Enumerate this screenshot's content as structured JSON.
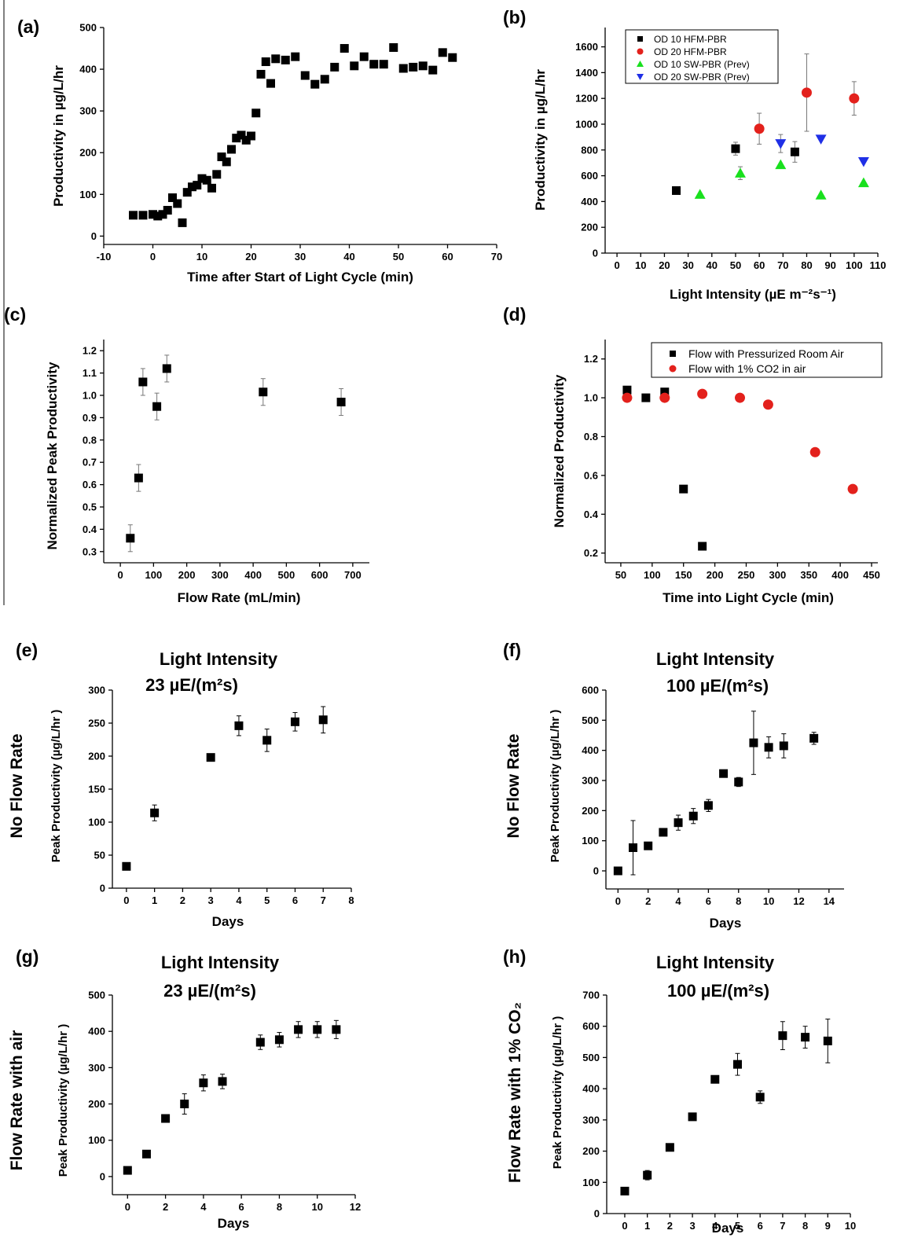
{
  "chart_data": [
    {
      "id": "a",
      "panel_label": "(a)",
      "type": "scatter",
      "xlabel": "Time after Start of Light Cycle (min)",
      "ylabel": "Productivity in µg/L/hr",
      "xlim": [
        -10,
        70
      ],
      "ylim": [
        -20,
        500
      ],
      "xticks": [
        -10,
        0,
        10,
        20,
        30,
        40,
        50,
        60,
        70
      ],
      "yticks": [
        0,
        100,
        200,
        300,
        400,
        500
      ],
      "series": [
        {
          "marker": "square",
          "color": "#000000",
          "points": [
            [
              -4,
              50
            ],
            [
              -2,
              50
            ],
            [
              0,
              52
            ],
            [
              1,
              48
            ],
            [
              2,
              52
            ],
            [
              3,
              62
            ],
            [
              4,
              92
            ],
            [
              5,
              78
            ],
            [
              6,
              32
            ],
            [
              7,
              105
            ],
            [
              8,
              118
            ],
            [
              9,
              122
            ],
            [
              10,
              138
            ],
            [
              11,
              134
            ],
            [
              12,
              115
            ],
            [
              13,
              148
            ],
            [
              14,
              190
            ],
            [
              15,
              178
            ],
            [
              16,
              208
            ],
            [
              17,
              235
            ],
            [
              18,
              242
            ],
            [
              19,
              230
            ],
            [
              20,
              240
            ],
            [
              21,
              295
            ],
            [
              22,
              388
            ],
            [
              23,
              418
            ],
            [
              24,
              366
            ],
            [
              25,
              425
            ],
            [
              27,
              422
            ],
            [
              29,
              430
            ],
            [
              31,
              385
            ],
            [
              33,
              364
            ],
            [
              35,
              376
            ],
            [
              37,
              405
            ],
            [
              39,
              450
            ],
            [
              41,
              408
            ],
            [
              43,
              430
            ],
            [
              45,
              412
            ],
            [
              47,
              412
            ],
            [
              49,
              452
            ],
            [
              51,
              402
            ],
            [
              53,
              405
            ],
            [
              55,
              408
            ],
            [
              57,
              398
            ],
            [
              59,
              440
            ],
            [
              61,
              428
            ]
          ]
        }
      ]
    },
    {
      "id": "b",
      "panel_label": "(b)",
      "type": "scatter",
      "xlabel": "Light Intensity (µE m⁻²s⁻¹)",
      "ylabel": "Productivity in µg/L/hr",
      "xlim": [
        -5,
        110
      ],
      "ylim": [
        0,
        1750
      ],
      "xticks": [
        0,
        10,
        20,
        30,
        40,
        50,
        60,
        70,
        80,
        90,
        100,
        110
      ],
      "yticks": [
        0,
        200,
        400,
        600,
        800,
        1000,
        1200,
        1400,
        1600
      ],
      "series": [
        {
          "name": "OD 10 HFM-PBR",
          "marker": "square",
          "color": "#000000",
          "points": [
            [
              25,
              485,
              0
            ],
            [
              50,
              810,
              50
            ],
            [
              75,
              785,
              80
            ]
          ]
        },
        {
          "name": "OD 20 HFM-PBR",
          "marker": "circle",
          "color": "#e3211c",
          "points": [
            [
              60,
              965,
              120
            ],
            [
              80,
              1245,
              300
            ],
            [
              100,
              1200,
              130
            ]
          ]
        },
        {
          "name": "OD 10 SW-PBR (Prev)",
          "marker": "triangle-up",
          "color": "#19e01e",
          "points": [
            [
              35,
              455,
              0
            ],
            [
              52,
              620,
              50
            ],
            [
              69,
              685,
              0
            ],
            [
              86,
              450,
              0
            ],
            [
              104,
              545,
              0
            ]
          ]
        },
        {
          "name": "OD 20 SW-PBR (Prev)",
          "marker": "triangle-down",
          "color": "#1f2fe6",
          "points": [
            [
              69,
              850,
              70
            ],
            [
              86,
              885,
              0
            ],
            [
              104,
              710,
              0
            ]
          ]
        }
      ],
      "legend_position": "top-left"
    },
    {
      "id": "c",
      "panel_label": "(c)",
      "type": "scatter",
      "xlabel": "Flow Rate (mL/min)",
      "ylabel": "Normalized Peak Productivity",
      "xlim": [
        -50,
        750
      ],
      "ylim": [
        0.25,
        1.25
      ],
      "xticks": [
        0,
        100,
        200,
        300,
        400,
        500,
        600,
        700
      ],
      "yticks": [
        0.3,
        0.4,
        0.5,
        0.6,
        0.7,
        0.8,
        0.9,
        1.0,
        1.1,
        1.2
      ],
      "series": [
        {
          "marker": "square",
          "color": "#000000",
          "points": [
            [
              30,
              0.36,
              0.06
            ],
            [
              55,
              0.63,
              0.06
            ],
            [
              68,
              1.06,
              0.06
            ],
            [
              110,
              0.95,
              0.06
            ],
            [
              140,
              1.12,
              0.06
            ],
            [
              430,
              1.015,
              0.06
            ],
            [
              665,
              0.97,
              0.06
            ]
          ]
        }
      ]
    },
    {
      "id": "d",
      "panel_label": "(d)",
      "type": "scatter",
      "xlabel": "Time into Light Cycle (min)",
      "ylabel": "Normalized Productivity",
      "xlim": [
        25,
        460
      ],
      "ylim": [
        0.15,
        1.3
      ],
      "xticks": [
        50,
        100,
        150,
        200,
        250,
        300,
        350,
        400,
        450
      ],
      "yticks": [
        0.2,
        0.4,
        0.6,
        0.8,
        1.0,
        1.2
      ],
      "series": [
        {
          "name": "Flow with Pressurized Room Air",
          "marker": "square",
          "color": "#000000",
          "points": [
            [
              60,
              1.04
            ],
            [
              90,
              1.0
            ],
            [
              120,
              1.03
            ],
            [
              150,
              0.53
            ],
            [
              180,
              0.235
            ]
          ]
        },
        {
          "name": "Flow with 1% CO2 in air",
          "marker": "circle",
          "color": "#e3211c",
          "points": [
            [
              60,
              1.0
            ],
            [
              120,
              1.0
            ],
            [
              180,
              1.02
            ],
            [
              240,
              1.0
            ],
            [
              285,
              0.965
            ],
            [
              360,
              0.72
            ],
            [
              420,
              0.53
            ]
          ]
        }
      ],
      "legend_position": "top-right"
    },
    {
      "id": "e",
      "panel_label": "(e)",
      "type": "scatter",
      "title_line1": "Light Intensity",
      "title_line2": "23 µE/(m²s)",
      "row_label": "No Flow Rate",
      "xlabel": "Days",
      "ylabel": "Peak Productivity (µg/L/hr )",
      "xlim": [
        -0.5,
        8
      ],
      "ylim": [
        0,
        300
      ],
      "xticks": [
        0,
        1,
        2,
        3,
        4,
        5,
        6,
        7,
        8
      ],
      "yticks": [
        0,
        50,
        100,
        150,
        200,
        250,
        300
      ],
      "series": [
        {
          "marker": "square",
          "color": "#000000",
          "points": [
            [
              0,
              33,
              0
            ],
            [
              1,
              114,
              12
            ],
            [
              3,
              198,
              0
            ],
            [
              4,
              246,
              15
            ],
            [
              5,
              224,
              17
            ],
            [
              6,
              252,
              14
            ],
            [
              7,
              255,
              20
            ]
          ]
        }
      ]
    },
    {
      "id": "f",
      "panel_label": "(f)",
      "type": "scatter",
      "title_line1": "Light Intensity",
      "title_line2": "100 µE/(m²s)",
      "row_label": "No Flow Rate",
      "xlabel": "Days",
      "ylabel": "Peak Productivity (µg/L/hr )",
      "xlim": [
        -0.8,
        15
      ],
      "ylim": [
        -60,
        600
      ],
      "xticks": [
        0,
        2,
        4,
        6,
        8,
        10,
        12,
        14
      ],
      "yticks": [
        0,
        100,
        200,
        300,
        400,
        500,
        600
      ],
      "series": [
        {
          "marker": "square",
          "color": "#000000",
          "points": [
            [
              0,
              0,
              0
            ],
            [
              1,
              77,
              90
            ],
            [
              2,
              83,
              0
            ],
            [
              3,
              128,
              0
            ],
            [
              4,
              160,
              25
            ],
            [
              5,
              182,
              25
            ],
            [
              6,
              217,
              20
            ],
            [
              7,
              323,
              0
            ],
            [
              8,
              295,
              15
            ],
            [
              9,
              425,
              105
            ],
            [
              10,
              410,
              35
            ],
            [
              11,
              415,
              40
            ],
            [
              13,
              440,
              20
            ]
          ]
        }
      ]
    },
    {
      "id": "g",
      "panel_label": "(g)",
      "type": "scatter",
      "title_line1": "Light Intensity",
      "title_line2": "23 µE/(m²s)",
      "row_label": "Flow Rate with air",
      "xlabel": "Days",
      "ylabel": "Peak Productivity (µg/L/hr )",
      "xlim": [
        -0.8,
        12
      ],
      "ylim": [
        -50,
        500
      ],
      "xticks": [
        0,
        2,
        4,
        6,
        8,
        10,
        12
      ],
      "yticks": [
        0,
        100,
        200,
        300,
        400,
        500
      ],
      "series": [
        {
          "marker": "square",
          "color": "#000000",
          "points": [
            [
              0,
              17,
              0
            ],
            [
              1,
              62,
              0
            ],
            [
              2,
              160,
              0
            ],
            [
              3,
              200,
              28
            ],
            [
              4,
              258,
              22
            ],
            [
              5,
              262,
              20
            ],
            [
              7,
              370,
              20
            ],
            [
              8,
              377,
              20
            ],
            [
              9,
              405,
              22
            ],
            [
              10,
              405,
              22
            ],
            [
              11,
              405,
              25
            ]
          ]
        }
      ]
    },
    {
      "id": "h",
      "panel_label": "(h)",
      "type": "scatter",
      "title_line1": "Light Intensity",
      "title_line2": "100 µE/(m²s)",
      "row_label": "Flow Rate with 1% CO₂",
      "xlabel": "Days",
      "ylabel": "Peak Productivity (µg/L/hr )",
      "xlim": [
        -0.8,
        10
      ],
      "ylim": [
        0,
        700
      ],
      "xticks": [
        0,
        1,
        2,
        3,
        4,
        5,
        6,
        7,
        8,
        9,
        10
      ],
      "yticks": [
        0,
        100,
        200,
        300,
        400,
        500,
        600,
        700
      ],
      "series": [
        {
          "marker": "square",
          "color": "#000000",
          "points": [
            [
              0,
              72,
              0
            ],
            [
              1,
              123,
              15
            ],
            [
              2,
              212,
              0
            ],
            [
              3,
              310,
              0
            ],
            [
              4,
              430,
              0
            ],
            [
              5,
              478,
              35
            ],
            [
              6,
              373,
              20
            ],
            [
              7,
              570,
              45
            ],
            [
              8,
              565,
              35
            ],
            [
              9,
              553,
              70
            ]
          ]
        }
      ]
    }
  ]
}
